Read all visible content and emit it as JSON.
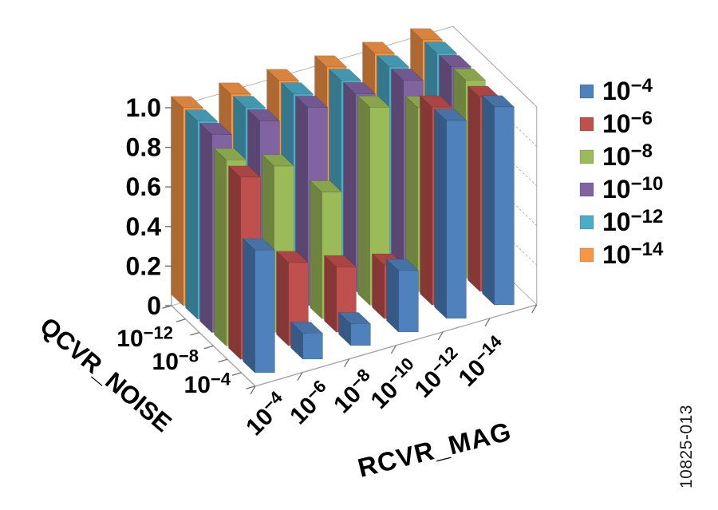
{
  "figure": {
    "background": "#ffffff",
    "watermark": "10825-013"
  },
  "chart_data": {
    "type": "bar",
    "projection": "3d-oblique",
    "title": "",
    "xlabel": "RCVR_MAG",
    "depth_label": "QCVR_NOISE",
    "ylabel": "",
    "ylim": [
      0,
      1.0
    ],
    "grid": true,
    "legend_position": "right",
    "y_ticks": [
      {
        "label": "0",
        "value": 0
      },
      {
        "label": "0.2",
        "value": 0.2
      },
      {
        "label": "0.4",
        "value": 0.4
      },
      {
        "label": "0.6",
        "value": 0.6
      },
      {
        "label": "0.8",
        "value": 0.8
      },
      {
        "label": "1.0",
        "value": 1.0
      }
    ],
    "categories": [
      {
        "base": "10",
        "exp": "−4"
      },
      {
        "base": "10",
        "exp": "−6"
      },
      {
        "base": "10",
        "exp": "−8"
      },
      {
        "base": "10",
        "exp": "−10"
      },
      {
        "base": "10",
        "exp": "−12"
      },
      {
        "base": "10",
        "exp": "−14"
      }
    ],
    "depth_tick_labels": [
      {
        "base": "10",
        "exp": "−12"
      },
      {
        "base": "10",
        "exp": "−8"
      },
      {
        "base": "10",
        "exp": "−4"
      }
    ],
    "series": [
      {
        "name": "10^−4",
        "base": "10",
        "exp": "−4",
        "color": "#4F81BD",
        "values": [
          0.62,
          0.13,
          0.11,
          0.31,
          1.0,
          1.0
        ]
      },
      {
        "name": "10^−6",
        "base": "10",
        "exp": "−6",
        "color": "#C0504D",
        "values": [
          0.92,
          0.42,
          0.33,
          0.27,
          1.0,
          0.98
        ]
      },
      {
        "name": "10^−8",
        "base": "10",
        "exp": "−8",
        "color": "#9BBB59",
        "values": [
          0.94,
          0.84,
          0.64,
          1.0,
          0.93,
          1.0
        ]
      },
      {
        "name": "10^−10",
        "base": "10",
        "exp": "−10",
        "color": "#8064A2",
        "values": [
          1.0,
          1.0,
          1.0,
          1.0,
          1.0,
          1.0
        ]
      },
      {
        "name": "10^−12",
        "base": "10",
        "exp": "−12",
        "color": "#4BACC6",
        "values": [
          1.0,
          1.0,
          1.0,
          1.0,
          1.0,
          1.0
        ]
      },
      {
        "name": "10^−14",
        "base": "10",
        "exp": "−14",
        "color": "#F79646",
        "values": [
          1.0,
          1.0,
          1.0,
          1.0,
          1.0,
          1.0
        ]
      }
    ],
    "colors": {
      "gridline": "#b3b3b3",
      "axis_edge": "#a6a6a6",
      "text": "#000000"
    }
  }
}
